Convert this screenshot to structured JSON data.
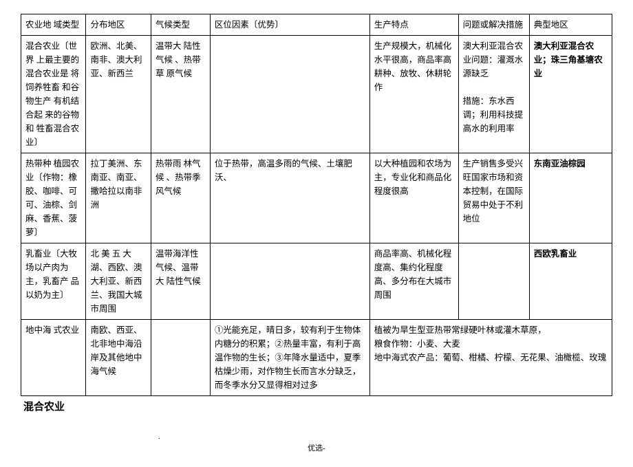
{
  "table": {
    "headers": [
      "农业地 域类型",
      "分布地区",
      "气候类型",
      "区位因素〔优势〕",
      "生产特点",
      "问题或解决措施",
      "典型地区"
    ],
    "rows": [
      {
        "c1": "混合农业〔世界 上最主要的 混合农业是 将饲养牲畜 和谷物生产 有机结合起 来的谷物和 牲畜混合农业〕",
        "c2": "欧洲、北美、南非、澳大利亚、新西兰",
        "c3": "温带大 陆性气候 、热带草 原气候",
        "c4": "",
        "c5": "生产规模大，机械化水平很高，商品率高\n耕种、放牧、休耕轮作",
        "c6": "澳大利亚混合农业问题：灌溉水源缺乏\n\n措施：东水西调；利用科技提高水的利用率",
        "c7": "澳大利亚混合农业；珠三角基塘农业",
        "c7bold": true
      },
      {
        "c1": "热带种 植园农业〔作物：橡胶、咖啡、可可、油棕、剑麻、香蕉、菠萝〕",
        "c2": "拉丁美洲、东南亚、南亚、撒哈拉以南非洲",
        "c3": "热带雨 林气候 、热带季 风气候",
        "c4": "位于热带，高温多雨的气候、土壤肥沃、",
        "c5": "以大种植园和农场为主，专业化和商品化程度很高",
        "c6": "生产销售多受兴旺国家市场和资本控制，在国际贸易中处于不利地位",
        "c7": "东南亚油棕园",
        "c7bold": true
      },
      {
        "c1": "乳畜业〔大牧 场以产肉为 主，乳畜产 品以奶为主〕",
        "c2": "北 美 五 大湖、西欧、澳大利亚、新西兰、我国大城市周围",
        "c3": "温带海洋性气候、温带大 陆性气候",
        "c4": "",
        "c5": "商品率高、机械化程度高、集约化程度高、多分布在大城市周围",
        "c6": "",
        "c7": "西欧乳畜业",
        "c7bold": true
      },
      {
        "c1": "地中海 式农业",
        "c2": "南欧、西亚、北非地中海沿岸及其他地中海气候",
        "c3": "",
        "c4": "①光能充足，晴日多，较有利于生物体内糖分的积累；②热量丰富，有利于高温作物的生长；③年降水量适中，夏季枯燥少雨，对作物生长而言水分缺乏，而冬季水分又显得相对过多",
        "c5merged": "植被为旱生型亚热带常绿硬叶林或灌木草原，\n粮食作物：小麦、大麦\n地中海式农产品：葡萄、柑橘、柠檬、无花果、油橄榄、玫瑰",
        "merged567": true
      }
    ]
  },
  "footerTitle": "混合农业",
  "pageDot": ".",
  "pageLabel": "优选-"
}
